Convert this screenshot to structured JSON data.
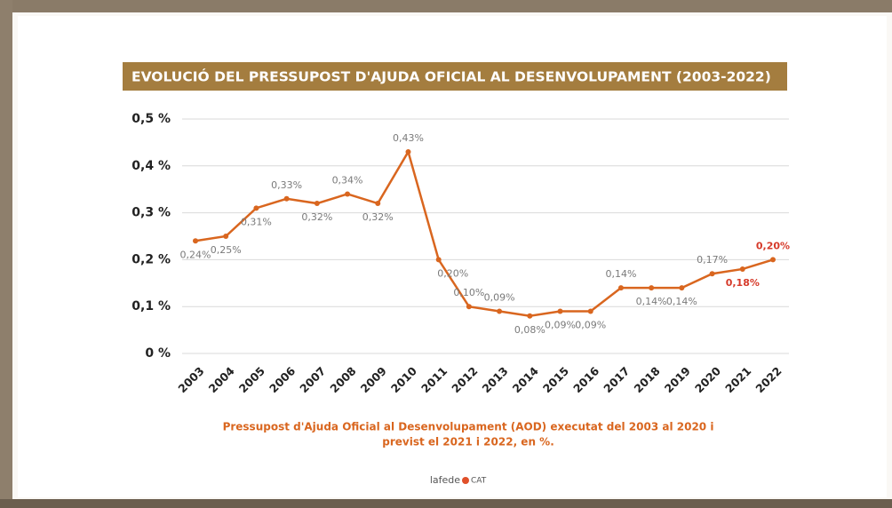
{
  "chart_data": {
    "type": "line",
    "title": "EVOLUCIÓ  DEL PRESSUPOST D'AJUDA OFICIAL AL DESENVOLUPAMENT (2003-2022)",
    "categories": [
      "2003",
      "2004",
      "2005",
      "2006",
      "2007",
      "2008",
      "2009",
      "2010",
      "2011",
      "2012",
      "2013",
      "2014",
      "2015",
      "2016",
      "2017",
      "2018",
      "2019",
      "2020",
      "2021",
      "2022"
    ],
    "series": [
      {
        "color": "#d9661f",
        "values": [
          0.24,
          0.25,
          0.31,
          0.33,
          0.32,
          0.34,
          0.32,
          0.43,
          0.2,
          0.1,
          0.09,
          0.08,
          0.09,
          0.09,
          0.14,
          0.14,
          0.14,
          0.17,
          0.18,
          0.2
        ],
        "value_labels": [
          "0,24%",
          "0,25%",
          "0,31%",
          "0,33%",
          "0,32%",
          "0,34%",
          "0,32%",
          "0,43%",
          "0,20%",
          "0,10%",
          "0,09%",
          "0,08%",
          "0,09%",
          "0,09%",
          "0,14%",
          "0,14%",
          "0,14%",
          "0,17%",
          "0,18%",
          "0,20%"
        ],
        "value_label_colors": [
          "#7a7a7a",
          "#7a7a7a",
          "#7a7a7a",
          "#7a7a7a",
          "#7a7a7a",
          "#7a7a7a",
          "#7a7a7a",
          "#7a7a7a",
          "#7a7a7a",
          "#7a7a7a",
          "#7a7a7a",
          "#7a7a7a",
          "#7a7a7a",
          "#7a7a7a",
          "#7a7a7a",
          "#7a7a7a",
          "#7a7a7a",
          "#7a7a7a",
          "#d63a2a",
          "#d63a2a"
        ]
      }
    ],
    "ylim": [
      0,
      0.5
    ],
    "yticks": [
      {
        "value": 0,
        "label": "0 %"
      },
      {
        "value": 0.1,
        "label": "0,1 %"
      },
      {
        "value": 0.2,
        "label": "0,2 %"
      },
      {
        "value": 0.3,
        "label": "0,3 %"
      },
      {
        "value": 0.4,
        "label": "0,4 %"
      },
      {
        "value": 0.5,
        "label": "0,5 %"
      }
    ],
    "grid": true,
    "caption": [
      "Pressupost d'Ajuda Oficial al Desenvolupament (AOD) executat del 2003 al 2020 i",
      "previst el 2021 i 2022, en %."
    ],
    "logo": {
      "name": "lafede",
      "suffix": "CAT"
    }
  }
}
